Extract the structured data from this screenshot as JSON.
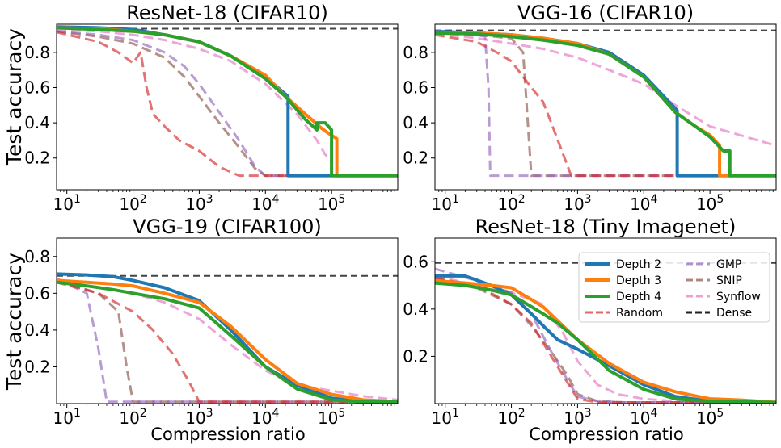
{
  "colors": {
    "Depth 2": "#1f77b4",
    "Depth 3": "#ff7f0e",
    "Depth 4": "#2ca02c",
    "Random": "#d62728",
    "GMP": "#9467bd",
    "SNIP": "#8c564b",
    "Synflow": "#e377c2",
    "Dense": "#000000"
  },
  "shared": {
    "ylabel": "Test accuracy",
    "xlabel": "Compression ratio"
  },
  "legend": {
    "location": "upper-right of ResNet-18 (Tiny Imagenet) panel",
    "items": [
      "Depth 2",
      "Depth 3",
      "Depth 4",
      "Random",
      "GMP",
      "SNIP",
      "Synflow",
      "Dense"
    ]
  },
  "chart_data": [
    {
      "type": "line",
      "title": "ResNet-18 (CIFAR10)",
      "xscale": "log",
      "xlim": [
        7,
        1000000
      ],
      "ylim": [
        0.02,
        0.96
      ],
      "xticks": [
        10,
        100,
        1000,
        10000,
        100000
      ],
      "yticks": [
        0.2,
        0.4,
        0.6,
        0.8
      ],
      "ytick_labels": [
        "0.2",
        "0.4",
        "0.6",
        "0.8"
      ],
      "dense": 0.935,
      "series": [
        {
          "name": "Depth 2",
          "x": [
            7,
            30,
            100,
            300,
            1000,
            3000,
            10000,
            22000,
            22000,
            1000000
          ],
          "y": [
            0.945,
            0.94,
            0.93,
            0.9,
            0.86,
            0.78,
            0.66,
            0.55,
            0.1,
            0.1
          ]
        },
        {
          "name": "Depth 3",
          "x": [
            7,
            30,
            100,
            300,
            1000,
            3000,
            10000,
            20000,
            40000,
            70000,
            90000,
            120000,
            120000,
            1000000
          ],
          "y": [
            0.94,
            0.935,
            0.92,
            0.9,
            0.86,
            0.78,
            0.67,
            0.55,
            0.45,
            0.37,
            0.34,
            0.31,
            0.1,
            0.1
          ]
        },
        {
          "name": "Depth 4",
          "x": [
            7,
            30,
            100,
            300,
            1000,
            3000,
            10000,
            20000,
            40000,
            60000,
            60000,
            80000,
            100000,
            100000,
            1000000
          ],
          "y": [
            0.94,
            0.93,
            0.92,
            0.9,
            0.86,
            0.78,
            0.65,
            0.55,
            0.42,
            0.36,
            0.4,
            0.4,
            0.36,
            0.1,
            0.1
          ]
        },
        {
          "name": "Random",
          "x": [
            7,
            30,
            60,
            100,
            130,
            160,
            200,
            300,
            500,
            1000,
            2000,
            4000,
            1000000
          ],
          "y": [
            0.915,
            0.86,
            0.8,
            0.74,
            0.8,
            0.6,
            0.45,
            0.38,
            0.3,
            0.24,
            0.15,
            0.1,
            0.1
          ]
        },
        {
          "name": "GMP",
          "x": [
            7,
            30,
            100,
            300,
            600,
            1000,
            2000,
            4000,
            7000,
            10000,
            1000000
          ],
          "y": [
            0.92,
            0.9,
            0.87,
            0.8,
            0.72,
            0.62,
            0.46,
            0.3,
            0.15,
            0.1,
            0.1
          ]
        },
        {
          "name": "SNIP",
          "x": [
            7,
            30,
            100,
            300,
            600,
            1000,
            2000,
            4000,
            7000,
            10000,
            1000000
          ],
          "y": [
            0.92,
            0.89,
            0.85,
            0.77,
            0.66,
            0.55,
            0.4,
            0.26,
            0.14,
            0.1,
            0.1
          ]
        },
        {
          "name": "Synflow",
          "x": [
            7,
            30,
            100,
            300,
            1000,
            3000,
            10000,
            30000,
            60000,
            80000,
            100000,
            100000,
            1000000
          ],
          "y": [
            0.93,
            0.92,
            0.9,
            0.87,
            0.82,
            0.75,
            0.62,
            0.45,
            0.3,
            0.22,
            0.18,
            0.1,
            0.1
          ]
        }
      ]
    },
    {
      "type": "line",
      "title": "VGG-16 (CIFAR10)",
      "xscale": "log",
      "xlim": [
        7,
        1000000
      ],
      "ylim": [
        0.02,
        0.96
      ],
      "xticks": [
        10,
        100,
        1000,
        10000,
        100000
      ],
      "yticks": [
        0.2,
        0.4,
        0.6,
        0.8
      ],
      "ytick_labels": [
        "0.2",
        "0.4",
        "0.6",
        "0.8"
      ],
      "dense": 0.925,
      "series": [
        {
          "name": "Depth 2",
          "x": [
            7,
            30,
            100,
            300,
            1000,
            3000,
            10000,
            32000,
            32000,
            1000000
          ],
          "y": [
            0.92,
            0.91,
            0.9,
            0.88,
            0.85,
            0.8,
            0.67,
            0.47,
            0.1,
            0.1
          ]
        },
        {
          "name": "Depth 3",
          "x": [
            7,
            30,
            100,
            300,
            1000,
            3000,
            10000,
            30000,
            60000,
            100000,
            140000,
            140000,
            1000000
          ],
          "y": [
            0.915,
            0.91,
            0.9,
            0.88,
            0.85,
            0.79,
            0.66,
            0.46,
            0.38,
            0.33,
            0.27,
            0.1,
            0.1
          ]
        },
        {
          "name": "Depth 4",
          "x": [
            7,
            30,
            100,
            300,
            1000,
            3000,
            10000,
            30000,
            60000,
            100000,
            160000,
            160000,
            200000,
            200000,
            1000000
          ],
          "y": [
            0.91,
            0.905,
            0.89,
            0.87,
            0.84,
            0.79,
            0.66,
            0.46,
            0.38,
            0.32,
            0.24,
            0.24,
            0.24,
            0.1,
            0.1
          ]
        },
        {
          "name": "Random",
          "x": [
            7,
            30,
            60,
            100,
            200,
            300,
            400,
            800,
            1000000
          ],
          "y": [
            0.9,
            0.86,
            0.8,
            0.75,
            0.6,
            0.52,
            0.4,
            0.1,
            0.1
          ]
        },
        {
          "name": "GMP",
          "x": [
            7,
            20,
            40,
            45,
            48,
            1000000
          ],
          "y": [
            0.92,
            0.91,
            0.89,
            0.6,
            0.1,
            0.1
          ]
        },
        {
          "name": "SNIP",
          "x": [
            7,
            30,
            100,
            150,
            170,
            200,
            1000000
          ],
          "y": [
            0.91,
            0.9,
            0.88,
            0.8,
            0.5,
            0.1,
            0.1
          ]
        },
        {
          "name": "Synflow",
          "x": [
            7,
            30,
            100,
            300,
            1000,
            3000,
            10000,
            30000,
            100000,
            1000000
          ],
          "y": [
            0.91,
            0.88,
            0.85,
            0.82,
            0.77,
            0.7,
            0.62,
            0.5,
            0.38,
            0.27
          ]
        }
      ]
    },
    {
      "type": "line",
      "title": "VGG-19 (CIFAR100)",
      "xscale": "log",
      "xlim": [
        7,
        1000000
      ],
      "ylim": [
        0.0,
        0.9
      ],
      "xticks": [
        10,
        100,
        1000,
        10000,
        100000
      ],
      "yticks": [
        0.2,
        0.4,
        0.6,
        0.8
      ],
      "ytick_labels": [
        "0.2",
        "0.4",
        "0.6",
        "0.8"
      ],
      "dense": 0.695,
      "series": [
        {
          "name": "Depth 2",
          "x": [
            7,
            20,
            50,
            100,
            300,
            1000,
            3000,
            10000,
            30000,
            100000,
            300000,
            1000000
          ],
          "y": [
            0.705,
            0.7,
            0.69,
            0.67,
            0.63,
            0.56,
            0.4,
            0.2,
            0.1,
            0.03,
            0.01,
            0.01
          ]
        },
        {
          "name": "Depth 3",
          "x": [
            7,
            20,
            50,
            100,
            300,
            1000,
            3000,
            10000,
            30000,
            100000,
            300000,
            1000000
          ],
          "y": [
            0.67,
            0.66,
            0.65,
            0.64,
            0.6,
            0.55,
            0.42,
            0.24,
            0.11,
            0.05,
            0.02,
            0.01
          ]
        },
        {
          "name": "Depth 4",
          "x": [
            7,
            20,
            50,
            100,
            300,
            1000,
            3000,
            10000,
            30000,
            100000,
            300000,
            1000000
          ],
          "y": [
            0.66,
            0.64,
            0.62,
            0.6,
            0.57,
            0.52,
            0.37,
            0.2,
            0.08,
            0.02,
            0.01,
            0.01
          ]
        },
        {
          "name": "Random",
          "x": [
            7,
            30,
            100,
            200,
            400,
            700,
            1000,
            1000000
          ],
          "y": [
            0.66,
            0.6,
            0.5,
            0.4,
            0.27,
            0.12,
            0.01,
            0.01
          ]
        },
        {
          "name": "GMP",
          "x": [
            7,
            20,
            30,
            40,
            1000000
          ],
          "y": [
            0.68,
            0.6,
            0.3,
            0.01,
            0.01
          ]
        },
        {
          "name": "SNIP",
          "x": [
            7,
            30,
            60,
            80,
            100,
            1000000
          ],
          "y": [
            0.67,
            0.6,
            0.5,
            0.2,
            0.01,
            0.01
          ]
        },
        {
          "name": "Synflow",
          "x": [
            7,
            30,
            100,
            300,
            1000,
            3000,
            10000,
            30000,
            100000,
            300000,
            1000000
          ],
          "y": [
            0.67,
            0.63,
            0.6,
            0.55,
            0.46,
            0.32,
            0.18,
            0.1,
            0.07,
            0.04,
            0.02
          ]
        }
      ]
    },
    {
      "type": "line",
      "title": "ResNet-18 (Tiny Imagenet)",
      "xscale": "log",
      "xlim": [
        7,
        1000000
      ],
      "ylim": [
        0.0,
        0.7
      ],
      "xticks": [
        10,
        100,
        1000,
        10000,
        100000
      ],
      "yticks": [
        0.2,
        0.4,
        0.6
      ],
      "ytick_labels": [
        "0.2",
        "0.4",
        "0.6"
      ],
      "dense": 0.595,
      "series": [
        {
          "name": "Depth 2",
          "x": [
            7,
            20,
            50,
            100,
            200,
            300,
            500,
            1000,
            3000,
            10000,
            30000,
            100000,
            1000000
          ],
          "y": [
            0.54,
            0.54,
            0.5,
            0.46,
            0.38,
            0.33,
            0.27,
            0.23,
            0.16,
            0.08,
            0.03,
            0.01,
            0.005
          ]
        },
        {
          "name": "Depth 3",
          "x": [
            7,
            20,
            50,
            100,
            200,
            300,
            500,
            1000,
            3000,
            10000,
            30000,
            100000,
            300000,
            1000000
          ],
          "y": [
            0.52,
            0.51,
            0.5,
            0.49,
            0.44,
            0.41,
            0.35,
            0.27,
            0.17,
            0.09,
            0.05,
            0.02,
            0.015,
            0.005
          ]
        },
        {
          "name": "Depth 4",
          "x": [
            7,
            20,
            50,
            100,
            200,
            300,
            500,
            1000,
            3000,
            10000,
            30000,
            100000,
            1000000
          ],
          "y": [
            0.51,
            0.5,
            0.48,
            0.46,
            0.41,
            0.38,
            0.34,
            0.27,
            0.14,
            0.06,
            0.02,
            0.01,
            0.005
          ]
        },
        {
          "name": "Random",
          "x": [
            7,
            30,
            100,
            200,
            400,
            700,
            1000,
            2000,
            5000,
            1000000
          ],
          "y": [
            0.53,
            0.5,
            0.42,
            0.34,
            0.2,
            0.09,
            0.02,
            0.005,
            0.005,
            0.005
          ]
        },
        {
          "name": "GMP",
          "x": [
            7,
            30,
            100,
            200,
            400,
            700,
            1000,
            2000,
            5000,
            1000000
          ],
          "y": [
            0.57,
            0.52,
            0.47,
            0.38,
            0.22,
            0.1,
            0.03,
            0.01,
            0.005,
            0.005
          ]
        },
        {
          "name": "SNIP",
          "x": [
            7,
            30,
            100,
            200,
            400,
            700,
            1000,
            2000,
            5000,
            1000000
          ],
          "y": [
            0.53,
            0.49,
            0.42,
            0.33,
            0.22,
            0.12,
            0.04,
            0.01,
            0.005,
            0.005
          ]
        },
        {
          "name": "Synflow",
          "x": [
            7,
            30,
            100,
            300,
            600,
            1000,
            2000,
            4000,
            10000,
            30000,
            100000,
            1000000
          ],
          "y": [
            0.54,
            0.5,
            0.47,
            0.42,
            0.3,
            0.18,
            0.08,
            0.04,
            0.02,
            0.01,
            0.005,
            0.005
          ]
        }
      ]
    }
  ]
}
